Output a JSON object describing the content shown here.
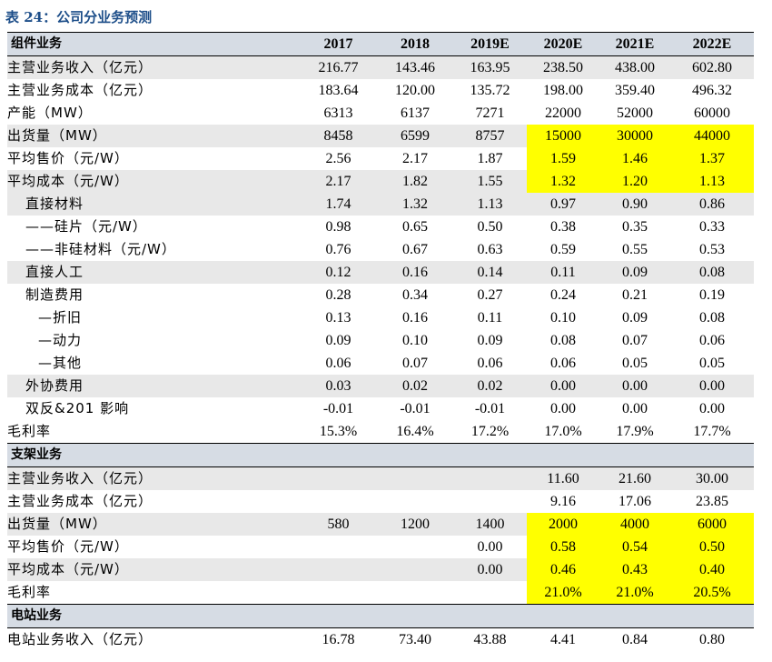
{
  "title": "表 24：公司分业务预测",
  "header": [
    "组件业务",
    "2017",
    "2018",
    "2019E",
    "2020E",
    "2021E",
    "2022E"
  ],
  "module_rows": [
    {
      "label": "主营业务收入（亿元）",
      "values": [
        "216.77",
        "143.46",
        "163.95",
        "238.50",
        "438.00",
        "602.80"
      ],
      "shaded": true
    },
    {
      "label": "主营业务成本（亿元）",
      "values": [
        "183.64",
        "120.00",
        "135.72",
        "198.00",
        "359.40",
        "496.32"
      ]
    },
    {
      "label": "产能（MW）",
      "values": [
        "6313",
        "6137",
        "7271",
        "22000",
        "52000",
        "60000"
      ]
    },
    {
      "label": "出货量（MW）",
      "values": [
        "8458",
        "6599",
        "8757",
        "15000",
        "30000",
        "44000"
      ],
      "shaded": true,
      "highlight": [
        3,
        4,
        5
      ]
    },
    {
      "label": "平均售价（元/W）",
      "values": [
        "2.56",
        "2.17",
        "1.87",
        "1.59",
        "1.46",
        "1.37"
      ],
      "highlight": [
        3,
        4,
        5
      ]
    },
    {
      "label": "平均成本（元/W）",
      "values": [
        "2.17",
        "1.82",
        "1.55",
        "1.32",
        "1.20",
        "1.13"
      ],
      "shaded": true,
      "highlight": [
        3,
        4,
        5
      ]
    },
    {
      "label": "直接材料",
      "values": [
        "1.74",
        "1.32",
        "1.13",
        "0.97",
        "0.90",
        "0.86"
      ],
      "shaded": true,
      "indent": 1
    },
    {
      "label": "——硅片（元/W）",
      "values": [
        "0.98",
        "0.65",
        "0.50",
        "0.38",
        "0.35",
        "0.33"
      ],
      "indent": 1
    },
    {
      "label": "——非硅材料（元/W）",
      "values": [
        "0.76",
        "0.67",
        "0.63",
        "0.59",
        "0.55",
        "0.53"
      ],
      "indent": 1
    },
    {
      "label": "直接人工",
      "values": [
        "0.12",
        "0.16",
        "0.14",
        "0.11",
        "0.09",
        "0.08"
      ],
      "shaded": true,
      "indent": 1
    },
    {
      "label": "制造费用",
      "values": [
        "0.28",
        "0.34",
        "0.27",
        "0.24",
        "0.21",
        "0.19"
      ],
      "indent": 1
    },
    {
      "label": "—折旧",
      "values": [
        "0.13",
        "0.16",
        "0.11",
        "0.10",
        "0.09",
        "0.08"
      ],
      "indent": 2
    },
    {
      "label": "—动力",
      "values": [
        "0.09",
        "0.10",
        "0.09",
        "0.08",
        "0.07",
        "0.06"
      ],
      "indent": 2
    },
    {
      "label": "—其他",
      "values": [
        "0.06",
        "0.07",
        "0.06",
        "0.06",
        "0.05",
        "0.05"
      ],
      "indent": 2
    },
    {
      "label": "外协费用",
      "values": [
        "0.03",
        "0.02",
        "0.02",
        "0.00",
        "0.00",
        "0.00"
      ],
      "shaded": true,
      "indent": 1
    },
    {
      "label": "双反&201 影响",
      "values": [
        "-0.01",
        "-0.01",
        "-0.01",
        "0.00",
        "0.00",
        "0.00"
      ],
      "indent": 1
    },
    {
      "label": "毛利率",
      "values": [
        "15.3%",
        "16.4%",
        "17.2%",
        "17.0%",
        "17.9%",
        "17.7%"
      ]
    }
  ],
  "bracket_section": "支架业务",
  "bracket_rows": [
    {
      "label": "主营业务收入（亿元）",
      "values": [
        "",
        "",
        "",
        "11.60",
        "21.60",
        "30.00"
      ],
      "shaded": true
    },
    {
      "label": "主营业务成本（亿元）",
      "values": [
        "",
        "",
        "",
        "9.16",
        "17.06",
        "23.85"
      ]
    },
    {
      "label": "出货量（MW）",
      "values": [
        "580",
        "1200",
        "1400",
        "2000",
        "4000",
        "6000"
      ],
      "shaded": true,
      "highlight": [
        3,
        4,
        5
      ]
    },
    {
      "label": "平均售价（元/W）",
      "values": [
        "",
        "",
        "0.00",
        "0.58",
        "0.54",
        "0.50"
      ],
      "highlight": [
        3,
        4,
        5
      ]
    },
    {
      "label": "平均成本（元/W）",
      "values": [
        "",
        "",
        "0.00",
        "0.46",
        "0.43",
        "0.40"
      ],
      "shaded": true,
      "highlight": [
        3,
        4,
        5
      ]
    },
    {
      "label": "毛利率",
      "values": [
        "",
        "",
        "",
        "21.0%",
        "21.0%",
        "20.5%"
      ],
      "highlight": [
        3,
        4,
        5
      ]
    }
  ],
  "station_section": "电站业务",
  "station_rows": [
    {
      "label": "电站业务收入（亿元）",
      "values": [
        "16.78",
        "73.40",
        "43.88",
        "4.41",
        "0.84",
        "0.80"
      ]
    }
  ]
}
